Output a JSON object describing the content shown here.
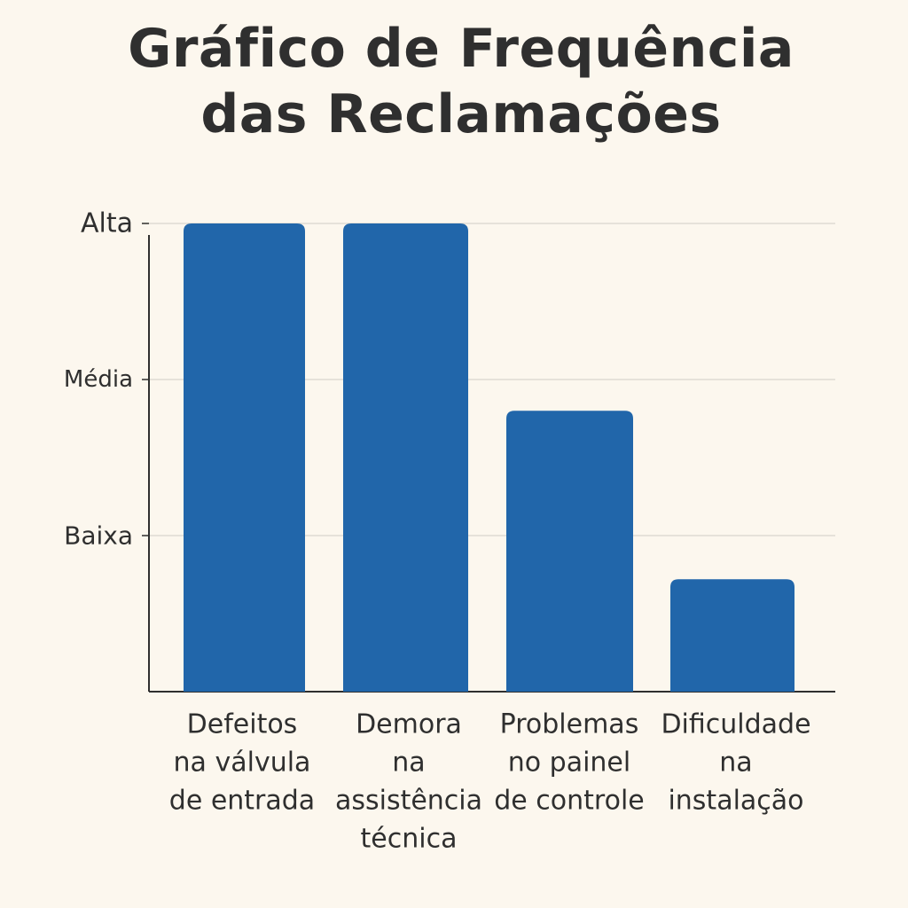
{
  "colors": {
    "background": "#fcf7ee",
    "bar": "#2166aa",
    "text": "#2f2f2f",
    "grid": "#d9d6cf",
    "axis": "#2f2f2f"
  },
  "chart_data": {
    "type": "bar",
    "title_lines": [
      "Gráfico de Frequência",
      "das Reclamações"
    ],
    "xlabel": "",
    "ylabel": "",
    "y_ticks": [
      {
        "label": "Baixa",
        "value": 1
      },
      {
        "label": "Média",
        "value": 2
      },
      {
        "label": "Alta",
        "value": 3
      }
    ],
    "ylim": [
      0,
      3
    ],
    "grid": true,
    "categories": [
      [
        "Defeitos",
        "na válvula",
        "de entrada"
      ],
      [
        "Demora",
        "na",
        "assistência",
        "técnica"
      ],
      [
        "Problemas",
        "no painel",
        "de controle"
      ],
      [
        "Dificuldade",
        "na",
        "instalação"
      ]
    ],
    "values": [
      3,
      3,
      1.8,
      0.72
    ]
  }
}
